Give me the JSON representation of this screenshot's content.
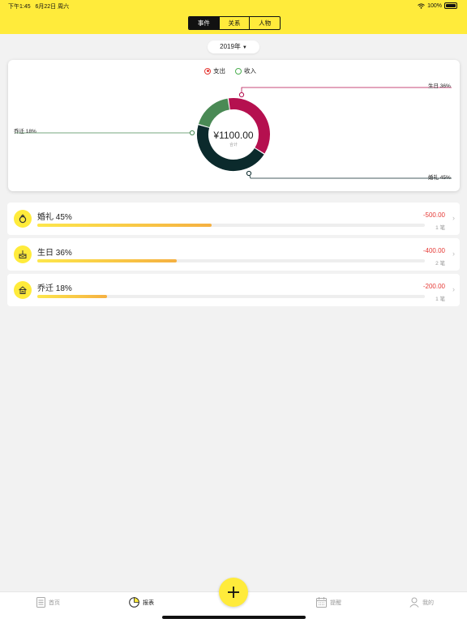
{
  "status": {
    "time": "下午1:45",
    "date": "6月22日 周六",
    "battery": "100%"
  },
  "tabs_top": [
    {
      "label": "事件",
      "active": true
    },
    {
      "label": "关系",
      "active": false
    },
    {
      "label": "人物",
      "active": false
    }
  ],
  "year_selector": {
    "label": "2019年"
  },
  "legend": {
    "expense": "支出",
    "income": "收入"
  },
  "chart": {
    "total": "¥1100.00",
    "total_caption": "合计",
    "labels": {
      "birthday": "生日 36%",
      "move": "乔迁 18%",
      "wedding": "婚礼 45%"
    }
  },
  "chart_data": {
    "type": "pie",
    "variant": "donut",
    "legend": [
      "支出",
      "收入"
    ],
    "selected": "支出",
    "total": 1100.0,
    "series": [
      {
        "name": "婚礼",
        "value": 500.0,
        "percent": 45,
        "color": "#0b2a2c"
      },
      {
        "name": "生日",
        "value": 400.0,
        "percent": 36,
        "color": "#b5104f"
      },
      {
        "name": "乔迁",
        "value": 200.0,
        "percent": 18,
        "color": "#4a8a55"
      }
    ]
  },
  "rows": [
    {
      "label": "婚礼 45%",
      "amount": "-500.00",
      "count": "1 笔",
      "fill": 0.45,
      "icon": "ring-icon"
    },
    {
      "label": "生日 36%",
      "amount": "-400.00",
      "count": "2 笔",
      "fill": 0.36,
      "icon": "cake-icon"
    },
    {
      "label": "乔迁 18%",
      "amount": "-200.00",
      "count": "1 笔",
      "fill": 0.18,
      "icon": "house-icon"
    }
  ],
  "tabbar": {
    "home": "首页",
    "report": "报表",
    "reminder": "提醒",
    "mine": "我的"
  },
  "colors": {
    "accent": "#ffeb3b",
    "expense_red": "#e53935"
  }
}
